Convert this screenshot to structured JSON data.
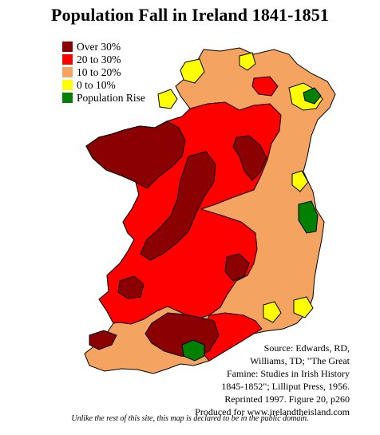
{
  "title": "Population Fall in Ireland 1841-1851",
  "legend": [
    {
      "label": "Over 30%",
      "color": "#8b0000"
    },
    {
      "label": "20 to 30%",
      "color": "#ff0000"
    },
    {
      "label": "10 to 20%",
      "color": "#f4a460"
    },
    {
      "label": "0 to 10%",
      "color": "#ffff00"
    },
    {
      "label": "Population Rise",
      "color": "#008000"
    }
  ],
  "source_lines": [
    "Source: Edwards, RD,",
    "Williams, TD; \"The Great",
    "Famine: Studies in Irish History",
    "1845-1852\"; Lilliput Press, 1956.",
    "Reprinted 1997. Figure 20, p260",
    "Produced for www.irelandtheisland.com"
  ],
  "footnote": "Unlike the rest of this site, this map is declared to be in the public domain."
}
